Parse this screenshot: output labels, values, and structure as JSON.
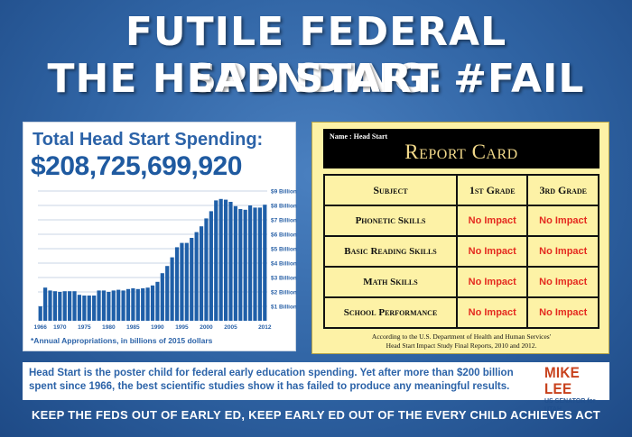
{
  "headline": {
    "line1": "FUTILE FEDERAL SPENDING:",
    "line2": "THE HEAD START #FAIL"
  },
  "chart_panel": {
    "title": "Total Head Start Spending:",
    "total": "$208,725,699,920",
    "note": "*Annual Appropriations, in billions of 2015 dollars"
  },
  "chart_data": {
    "type": "bar",
    "x": [
      1966,
      1967,
      1968,
      1969,
      1970,
      1971,
      1972,
      1973,
      1974,
      1975,
      1976,
      1977,
      1978,
      1979,
      1980,
      1981,
      1982,
      1983,
      1984,
      1985,
      1986,
      1987,
      1988,
      1989,
      1990,
      1991,
      1992,
      1993,
      1994,
      1995,
      1996,
      1997,
      1998,
      1999,
      2000,
      2001,
      2002,
      2003,
      2004,
      2005,
      2006,
      2007,
      2008,
      2009,
      2010,
      2011,
      2012
    ],
    "values": [
      1.0,
      2.3,
      2.1,
      2.05,
      2.0,
      2.05,
      2.05,
      2.05,
      1.8,
      1.75,
      1.75,
      1.75,
      2.1,
      2.1,
      2.0,
      2.1,
      2.15,
      2.1,
      2.2,
      2.25,
      2.2,
      2.25,
      2.3,
      2.45,
      2.7,
      3.3,
      3.8,
      4.4,
      5.1,
      5.4,
      5.4,
      5.75,
      6.15,
      6.55,
      7.1,
      7.6,
      8.35,
      8.45,
      8.4,
      8.25,
      7.95,
      7.75,
      7.7,
      8.0,
      7.85,
      7.85,
      8.05
    ],
    "ylim": [
      0,
      9
    ],
    "yticks": [
      "$1 Billion",
      "$2 Billion",
      "$3 Billion",
      "$4 Billion",
      "$5 Billion",
      "$6 Billion",
      "$7 Billion",
      "$8 Billion",
      "$9 Billion"
    ],
    "ytick_values": [
      1,
      2,
      3,
      4,
      5,
      6,
      7,
      8,
      9
    ],
    "xtick_labels": [
      "1966",
      "1970",
      "1975",
      "1980",
      "1985",
      "1990",
      "1995",
      "2000",
      "2005",
      "2012"
    ],
    "xtick_values": [
      1966,
      1970,
      1975,
      1980,
      1985,
      1990,
      1995,
      2000,
      2005,
      2012
    ],
    "grid": true,
    "bar_color": "#1f5fa8"
  },
  "report_card": {
    "name_label": "Name : Head Start",
    "title": "Report Card",
    "columns": [
      "Subject",
      "1st Grade",
      "3rd Grade"
    ],
    "rows": [
      {
        "subject": "Phonetic Skills",
        "first": "No Impact",
        "third": "No Impact"
      },
      {
        "subject": "Basic Reading Skills",
        "first": "No Impact",
        "third": "No Impact"
      },
      {
        "subject": "Math Skills",
        "first": "No Impact",
        "third": "No Impact"
      },
      {
        "subject": "School Performance",
        "first": "No Impact",
        "third": "No Impact"
      }
    ],
    "source_line1": "According to the U.S. Department of Health and Human Services'",
    "source_line2": "Head Start Impact Study Final Reports, 2010 and 2012."
  },
  "bottom": {
    "text": "Head Start is the poster child for federal early education spending. Yet after more than $200 billion spent since 1966, the best scientific studies show it has failed to produce any meaningful results.",
    "logo_name": "MIKE LEE",
    "logo_sub": "US SENATOR for UTAH"
  },
  "footer": "KEEP THE FEDS OUT OF EARLY ED, KEEP EARLY ED OUT OF THE EVERY CHILD ACHIEVES ACT",
  "colors": {
    "background": "#2f63a3",
    "accent_blue": "#2c63a8",
    "impact_red": "#e42a1f",
    "card_yellow": "#fdf2a6",
    "logo_orange": "#c8421d"
  }
}
